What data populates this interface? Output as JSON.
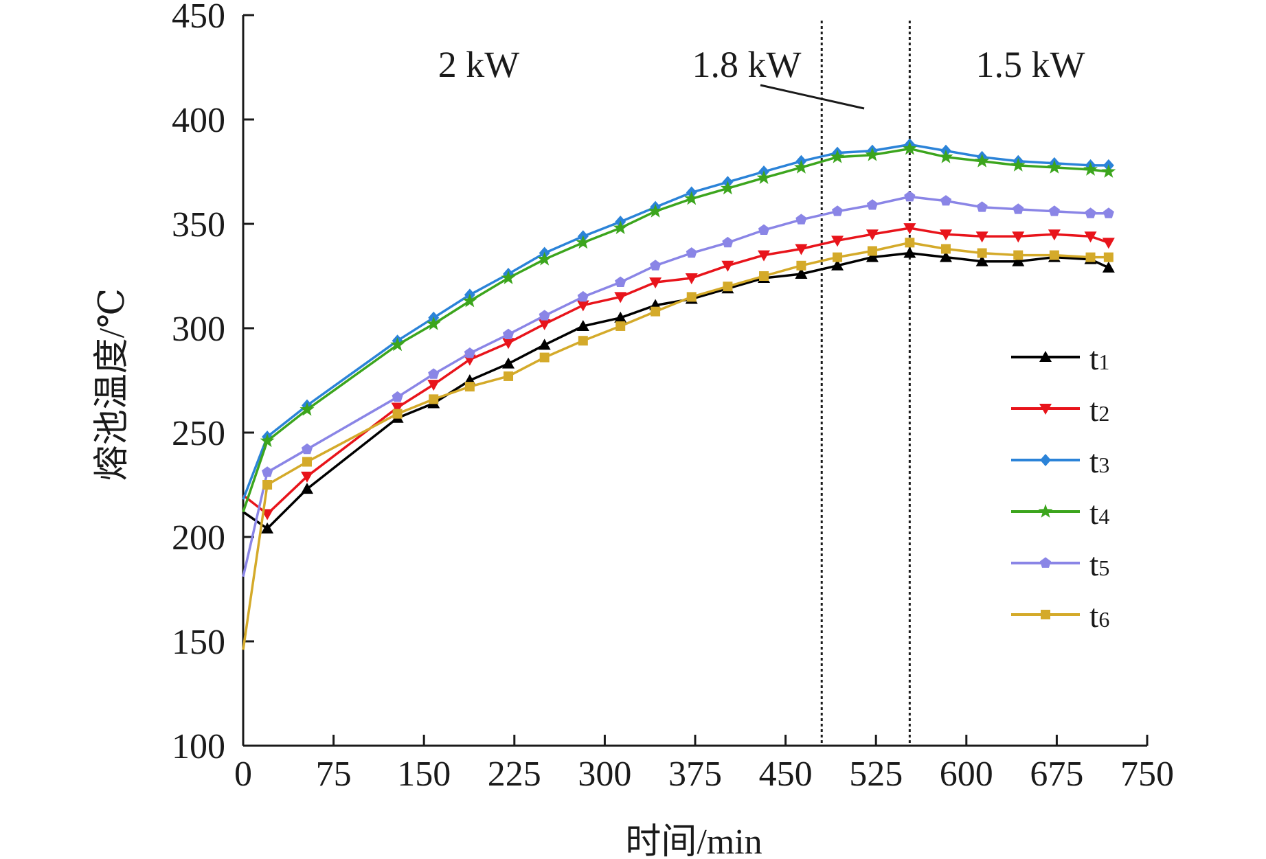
{
  "chart_data": {
    "type": "line",
    "xlabel": "时间/min",
    "ylabel": "熔池温度/℃",
    "xlim": [
      0,
      750
    ],
    "ylim": [
      100,
      450
    ],
    "xticks": [
      0,
      75,
      150,
      225,
      300,
      375,
      450,
      525,
      600,
      675,
      750
    ],
    "yticks": [
      100,
      150,
      200,
      250,
      300,
      350,
      400,
      450
    ],
    "grid": false,
    "legend_position": "right",
    "x": [
      0,
      20,
      53,
      128,
      158,
      188,
      220,
      250,
      282,
      313,
      342,
      372,
      402,
      432,
      463,
      493,
      522,
      553,
      583,
      613,
      643,
      673,
      703,
      718
    ],
    "series": [
      {
        "name": "t1",
        "color": "#000000",
        "marker": "triangle-up",
        "values": [
          212,
          204,
          223,
          257,
          264,
          275,
          283,
          292,
          301,
          305,
          311,
          314,
          319,
          324,
          326,
          330,
          334,
          336,
          334,
          332,
          332,
          334,
          333,
          329
        ]
      },
      {
        "name": "t2",
        "color": "#e8141b",
        "marker": "triangle-down",
        "values": [
          220,
          211,
          229,
          262,
          273,
          285,
          293,
          302,
          311,
          315,
          322,
          324,
          330,
          335,
          338,
          342,
          345,
          348,
          345,
          344,
          344,
          345,
          344,
          341
        ]
      },
      {
        "name": "t3",
        "color": "#2b83d8",
        "marker": "diamond",
        "values": [
          218,
          248,
          263,
          294,
          305,
          316,
          326,
          336,
          344,
          351,
          358,
          365,
          370,
          375,
          380,
          384,
          385,
          388,
          385,
          382,
          380,
          379,
          378,
          378
        ]
      },
      {
        "name": "t4",
        "color": "#3ca51d",
        "marker": "star",
        "values": [
          212,
          246,
          261,
          292,
          302,
          313,
          324,
          333,
          341,
          348,
          356,
          362,
          367,
          372,
          377,
          382,
          383,
          386,
          382,
          380,
          378,
          377,
          376,
          375
        ]
      },
      {
        "name": "t5",
        "color": "#8a85e6",
        "marker": "pentagon",
        "values": [
          181,
          231,
          242,
          267,
          278,
          288,
          297,
          306,
          315,
          322,
          330,
          336,
          341,
          347,
          352,
          356,
          359,
          363,
          361,
          358,
          357,
          356,
          355,
          355
        ]
      },
      {
        "name": "t6",
        "color": "#d4aa2a",
        "marker": "square",
        "values": [
          146,
          225,
          236,
          259,
          266,
          272,
          277,
          286,
          294,
          301,
          308,
          315,
          320,
          325,
          330,
          334,
          337,
          341,
          338,
          336,
          335,
          335,
          334,
          334
        ]
      }
    ],
    "vlines": [
      480,
      553
    ],
    "annotations": [
      "2 kW",
      "1.8 kW",
      "1.5 kW"
    ]
  }
}
